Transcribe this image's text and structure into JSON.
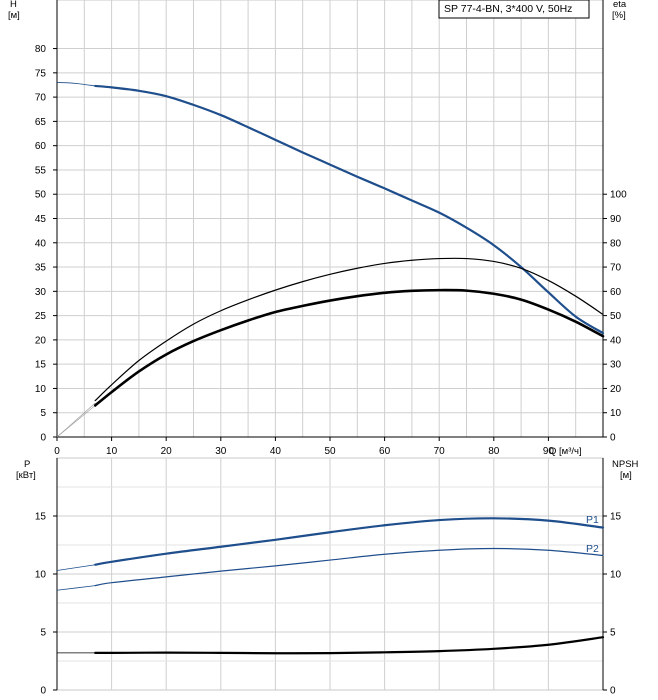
{
  "chart_data": [
    {
      "type": "line",
      "panel": "head-efficiency",
      "legend": "SP 77-4-BN, 3*400 V, 50Hz",
      "legend_position": "top-right",
      "grid": true,
      "xlabel": "Q [м³/ч]",
      "ylabel": "H\n[м]",
      "y2label": "eta\n[%]",
      "x_ticks": [
        0,
        10,
        20,
        30,
        40,
        50,
        60,
        70,
        80,
        90
      ],
      "xlim": [
        0,
        100
      ],
      "ylim": [
        0,
        90
      ],
      "y_ticks": [
        0,
        5,
        10,
        15,
        20,
        25,
        30,
        35,
        40,
        45,
        50,
        55,
        60,
        65,
        70,
        75,
        80
      ],
      "y2lim": [
        0,
        180
      ],
      "y2_ticks": [
        0,
        10,
        20,
        30,
        40,
        50,
        60,
        70,
        80,
        90,
        100
      ],
      "series": [
        {
          "key": "H",
          "axis": "left",
          "color": "#1f4e8c",
          "thin_x": [
            0,
            2,
            4,
            7
          ],
          "thin_y": [
            73,
            72.95,
            72.75,
            72.3
          ],
          "x": [
            7,
            10,
            15,
            20,
            25,
            30,
            35,
            40,
            45,
            50,
            55,
            60,
            65,
            70,
            75,
            80,
            85,
            90,
            95,
            100
          ],
          "y": [
            72.3,
            72.0,
            71.3,
            70.2,
            68.4,
            66.3,
            63.8,
            61.2,
            58.6,
            56.1,
            53.6,
            51.2,
            48.7,
            46.2,
            43.1,
            39.5,
            35.0,
            29.8,
            24.8,
            21.4
          ]
        },
        {
          "key": "eta-thin",
          "axis": "right",
          "color": "#000000",
          "thin_x": [
            0,
            3.5,
            7
          ],
          "thin_y": [
            0,
            7,
            14
          ],
          "x": [
            7,
            10,
            15,
            20,
            25,
            30,
            35,
            40,
            45,
            50,
            55,
            60,
            65,
            70,
            75,
            80,
            85,
            90,
            95,
            100
          ],
          "y": [
            15,
            21.5,
            31.5,
            39.5,
            46.5,
            52,
            56.5,
            60.5,
            64,
            67,
            69.5,
            71.5,
            72.8,
            73.5,
            73.5,
            72.3,
            69.5,
            64.5,
            58,
            50.5
          ]
        },
        {
          "key": "eta-bold",
          "axis": "right",
          "color": "#000000",
          "thin_x": [
            0,
            3.5,
            7
          ],
          "thin_y": [
            0,
            6.5,
            13
          ],
          "x": [
            7,
            10,
            15,
            20,
            25,
            30,
            35,
            40,
            45,
            50,
            55,
            60,
            65,
            70,
            75,
            80,
            85,
            90,
            95,
            100
          ],
          "y": [
            13,
            18.5,
            27,
            34,
            39.5,
            44,
            48,
            51.5,
            54,
            56.2,
            58,
            59.4,
            60.2,
            60.5,
            60.3,
            59,
            56.6,
            52.5,
            47.5,
            41.5
          ]
        }
      ]
    },
    {
      "type": "line",
      "panel": "power-npsh",
      "grid": true,
      "ylabel": "P\n[кВт]",
      "y2label": "NPSH\n[м]",
      "xlim": [
        0,
        100
      ],
      "ylim": [
        0,
        20
      ],
      "y_ticks": [
        0,
        5,
        10,
        15
      ],
      "y2lim": [
        0,
        20
      ],
      "y2_ticks": [
        0,
        5,
        10,
        15
      ],
      "series": [
        {
          "name": "P1",
          "axis": "left",
          "color": "#1f4e8c",
          "thin_x": [
            0,
            7
          ],
          "thin_y": [
            10.3,
            10.8
          ],
          "x": [
            7,
            10,
            20,
            30,
            40,
            50,
            60,
            70,
            80,
            90,
            100
          ],
          "y": [
            10.8,
            11.05,
            11.75,
            12.35,
            12.95,
            13.6,
            14.2,
            14.65,
            14.8,
            14.6,
            14.0
          ]
        },
        {
          "name": "P2",
          "axis": "left",
          "color": "#1f4e8c",
          "thin_x": [
            0,
            7
          ],
          "thin_y": [
            8.6,
            9.0
          ],
          "x": [
            7,
            10,
            20,
            30,
            40,
            50,
            60,
            70,
            80,
            90,
            100
          ],
          "y": [
            9.0,
            9.25,
            9.75,
            10.25,
            10.7,
            11.2,
            11.7,
            12.05,
            12.2,
            12.05,
            11.6
          ]
        },
        {
          "key": "NPSH",
          "axis": "right",
          "color": "#000000",
          "thin_x": [
            0,
            7
          ],
          "thin_y": [
            3.2,
            3.2
          ],
          "x": [
            7,
            10,
            20,
            30,
            40,
            50,
            60,
            70,
            80,
            90,
            100
          ],
          "y": [
            3.2,
            3.2,
            3.22,
            3.2,
            3.17,
            3.18,
            3.25,
            3.35,
            3.55,
            3.9,
            4.55
          ]
        }
      ]
    }
  ]
}
